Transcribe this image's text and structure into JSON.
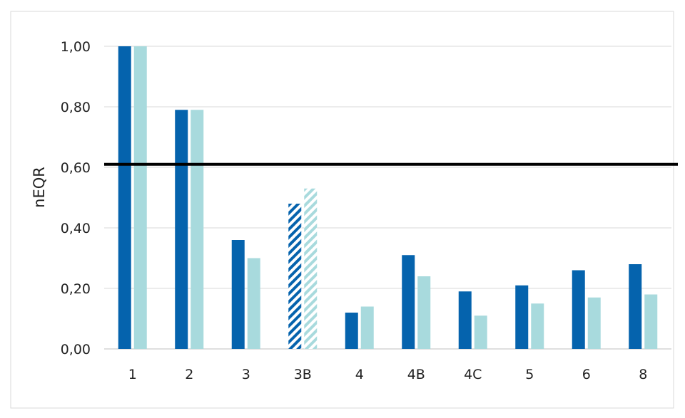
{
  "chart_data": {
    "type": "bar",
    "title": "",
    "xlabel": "",
    "ylabel": "nEQR",
    "ylim": [
      0,
      1.0
    ],
    "yticks": [
      "0,00",
      "0,20",
      "0,40",
      "0,60",
      "0,80",
      "1,00"
    ],
    "ytick_values": [
      0,
      0.2,
      0.4,
      0.6,
      0.8,
      1.0
    ],
    "categories": [
      "1",
      "2",
      "3",
      "3B",
      "4",
      "4B",
      "4C",
      "5",
      "6",
      "8"
    ],
    "series": [
      {
        "values": [
          1.0,
          0.79,
          0.36,
          0.48,
          0.12,
          0.31,
          0.19,
          0.21,
          0.26,
          0.28
        ],
        "color": "#0563ad"
      },
      {
        "values": [
          1.0,
          0.79,
          0.3,
          0.53,
          0.14,
          0.24,
          0.11,
          0.15,
          0.17,
          0.18
        ],
        "color": "#a8dadd"
      }
    ],
    "hatched_categories": [
      "3B"
    ],
    "reference_line": {
      "value": 0.61,
      "color": "#000000"
    },
    "grid": true,
    "legend": "none"
  }
}
